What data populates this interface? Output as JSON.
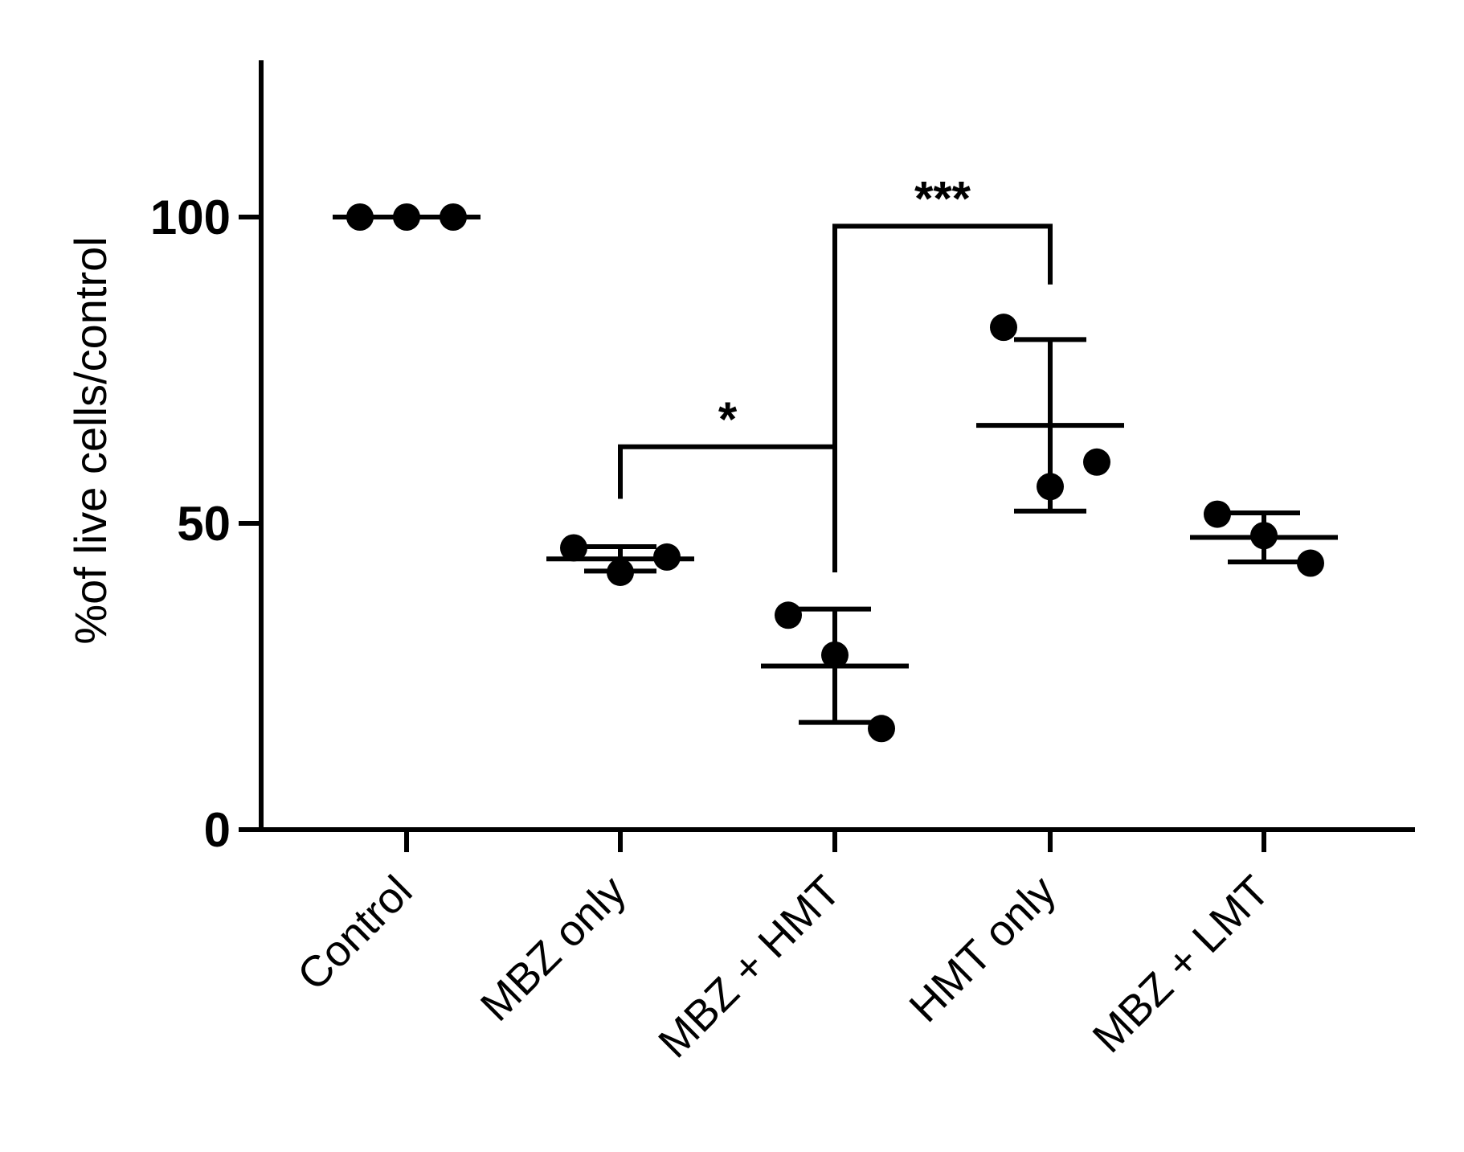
{
  "chart_data": {
    "type": "scatter",
    "ylabel": "%of live cells/control",
    "xlabel": "",
    "ylim": [
      0,
      125
    ],
    "yticks": [
      0,
      50,
      100
    ],
    "grid": false,
    "legend": "none",
    "categories": [
      "Control",
      "MBZ only",
      "MBZ + HMT",
      "HMT only",
      "MBZ + LMT"
    ],
    "groups": [
      {
        "category": "Control",
        "points": [
          100,
          100,
          100
        ],
        "mean": 100,
        "sd_low": 100,
        "sd_high": 100
      },
      {
        "category": "MBZ only",
        "points": [
          46,
          42,
          44.5
        ],
        "mean": 44.2,
        "sd_low": 42.2,
        "sd_high": 46.2
      },
      {
        "category": "MBZ + HMT",
        "points": [
          35,
          28.5,
          16.5
        ],
        "mean": 26.7,
        "sd_low": 17.5,
        "sd_high": 36
      },
      {
        "category": "HMT only",
        "points": [
          82,
          56,
          60
        ],
        "mean": 66,
        "sd_low": 52,
        "sd_high": 80
      },
      {
        "category": "MBZ + LMT",
        "points": [
          51.5,
          48,
          43.5
        ],
        "mean": 47.7,
        "sd_low": 43.7,
        "sd_high": 51.7
      }
    ],
    "annotations": [
      {
        "from": "MBZ only",
        "to": "MBZ + HMT",
        "label": "*",
        "level": 62.5,
        "left_end": 54,
        "right_end": 42
      },
      {
        "from": "MBZ + HMT",
        "to": "HMT only",
        "label": "***",
        "level": 98.5,
        "left_end": 42.5,
        "right_end": 89
      }
    ]
  }
}
